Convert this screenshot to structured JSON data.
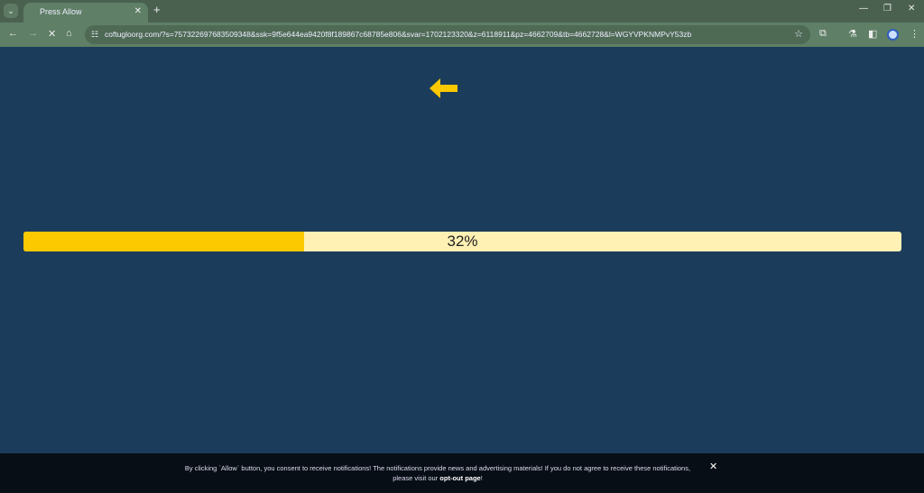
{
  "browser": {
    "tab_title": "Press Allow",
    "url": "coftugloorg.com/?s=757322697683509348&ssk=9f5e644ea9420f8f189867c68785e806&svar=1702123320&z=6118911&pz=4662709&tb=4662728&l=WGYVPKNMPvY53zb"
  },
  "page": {
    "arrow_icon": "arrow-left-icon",
    "arrow_color": "#fcc800",
    "progress_percent": 32,
    "progress_label": "32%",
    "fill_color": "#fcc800",
    "track_color": "#fff0b3",
    "background": "#1c3c5b"
  },
  "banner": {
    "text": "By clicking `Allow` button, you consent to receive notifications! The notifications provide news and advertising materials! If you do not agree to receive these notifications,",
    "text2": "please visit our ",
    "link": "opt-out page",
    "end": "!"
  }
}
